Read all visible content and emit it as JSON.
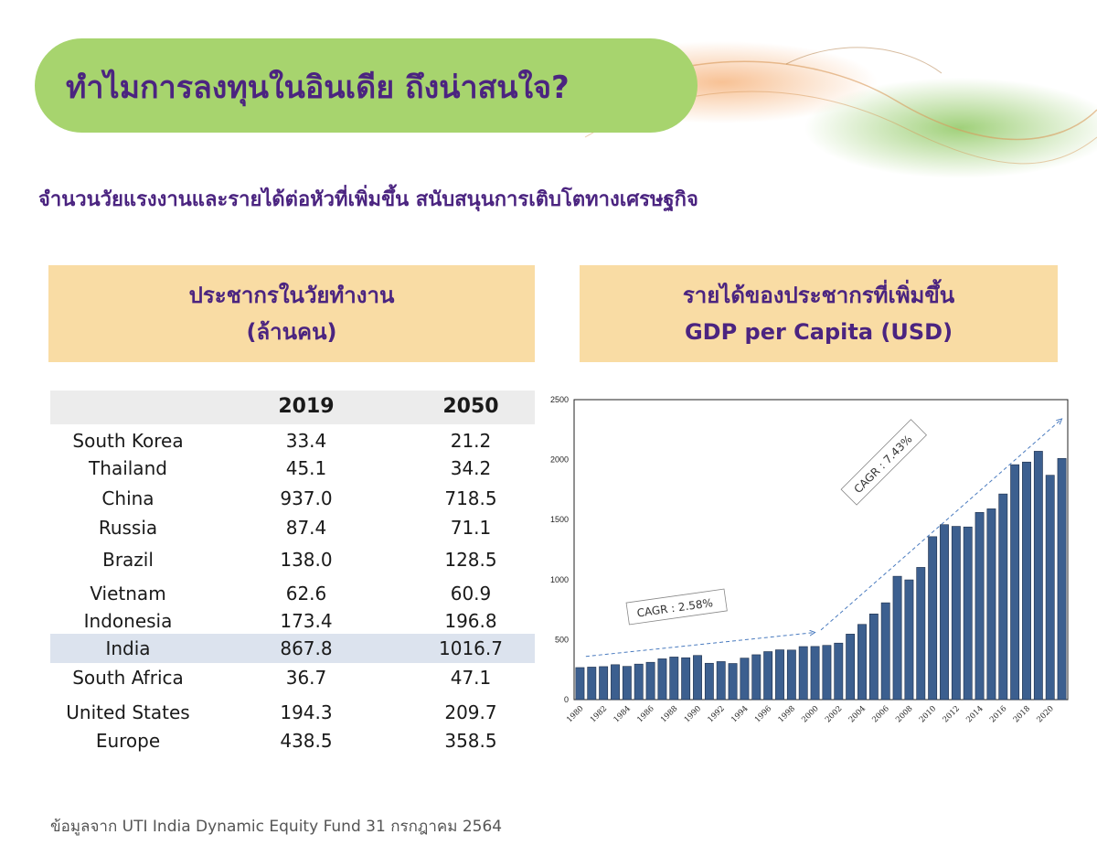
{
  "header": {
    "title": "ทำไมการลงทุนในอินเดีย ถึงน่าสนใจ?",
    "subtitle": "จำนวนวัยแรงงานและรายได้ต่อหัวที่เพิ่มขึ้น สนับสนุนการเติบโตทางเศรษฐกิจ"
  },
  "left_panel": {
    "title_line1": "ประชากรในวัยทำงาน",
    "title_line2": "(ล้านคน)"
  },
  "right_panel": {
    "title_line1": "รายได้ของประชากรที่เพิ่มขึ้น",
    "title_line2": "GDP per Capita (USD)"
  },
  "table": {
    "columns": [
      "",
      "2019",
      "2050"
    ],
    "rows": [
      {
        "country": "South Korea",
        "y2019": "33.4",
        "y2050": "21.2"
      },
      {
        "country": "Thailand",
        "y2019": "45.1",
        "y2050": "34.2"
      },
      {
        "country": "China",
        "y2019": "937.0",
        "y2050": "718.5"
      },
      {
        "country": "Russia",
        "y2019": "87.4",
        "y2050": "71.1"
      },
      {
        "country": "Brazil",
        "y2019": "138.0",
        "y2050": "128.5"
      },
      {
        "country": "Vietnam",
        "y2019": "62.6",
        "y2050": "60.9"
      },
      {
        "country": "Indonesia",
        "y2019": "173.4",
        "y2050": "196.8"
      },
      {
        "country": "India",
        "y2019": "867.8",
        "y2050": "1016.7",
        "highlight": true
      },
      {
        "country": "South Africa",
        "y2019": "36.7",
        "y2050": "47.1"
      },
      {
        "country": "United States",
        "y2019": "194.3",
        "y2050": "209.7"
      },
      {
        "country": "Europe",
        "y2019": "438.5",
        "y2050": "358.5"
      }
    ]
  },
  "chart_data": {
    "type": "bar",
    "x": [
      1980,
      1981,
      1982,
      1983,
      1984,
      1985,
      1986,
      1987,
      1988,
      1989,
      1990,
      1991,
      1992,
      1993,
      1994,
      1995,
      1996,
      1997,
      1998,
      1999,
      2000,
      2001,
      2002,
      2003,
      2004,
      2005,
      2006,
      2007,
      2008,
      2009,
      2010,
      2011,
      2012,
      2013,
      2014,
      2015,
      2016,
      2017,
      2018,
      2019,
      2020,
      2021
    ],
    "values": [
      267,
      271,
      275,
      291,
      277,
      296,
      311,
      340,
      355,
      349,
      368,
      303,
      317,
      301,
      346,
      374,
      400,
      415,
      413,
      442,
      443,
      452,
      471,
      546,
      627,
      714,
      807,
      1028,
      998,
      1102,
      1358,
      1458,
      1444,
      1439,
      1560,
      1590,
      1714,
      1958,
      1980,
      2070,
      1870,
      2010
    ],
    "tick_labels": [
      "1980",
      "1982",
      "1984",
      "1986",
      "1988",
      "1990",
      "1992",
      "1994",
      "1996",
      "1998",
      "2000",
      "2002",
      "2004",
      "2006",
      "2008",
      "2010",
      "2012",
      "2014",
      "2016",
      "2018",
      "2020"
    ],
    "ylim": [
      0,
      2500
    ],
    "yticks": [
      0,
      500,
      1000,
      1500,
      2000,
      2500
    ],
    "grid": false,
    "bar_color": "#3c5f8f",
    "annotations": [
      {
        "text": "CAGR : 2.58%",
        "from": [
          1980.5,
          360
        ],
        "to": [
          2000,
          560
        ]
      },
      {
        "text": "CAGR : 7.43%",
        "from": [
          2000.5,
          580
        ],
        "to": [
          2021,
          2340
        ]
      }
    ]
  },
  "footer": {
    "source": "ข้อมูลจาก UTI India Dynamic Equity Fund 31 กรกฎาคม 2564"
  },
  "colors": {
    "title_pill": "#a7d46e",
    "title_text": "#4b2480",
    "panel_header": "#f9dca4",
    "highlight_row": "#dce3ee",
    "decor_orange": "#f6b27a",
    "decor_green": "#8fc862"
  }
}
